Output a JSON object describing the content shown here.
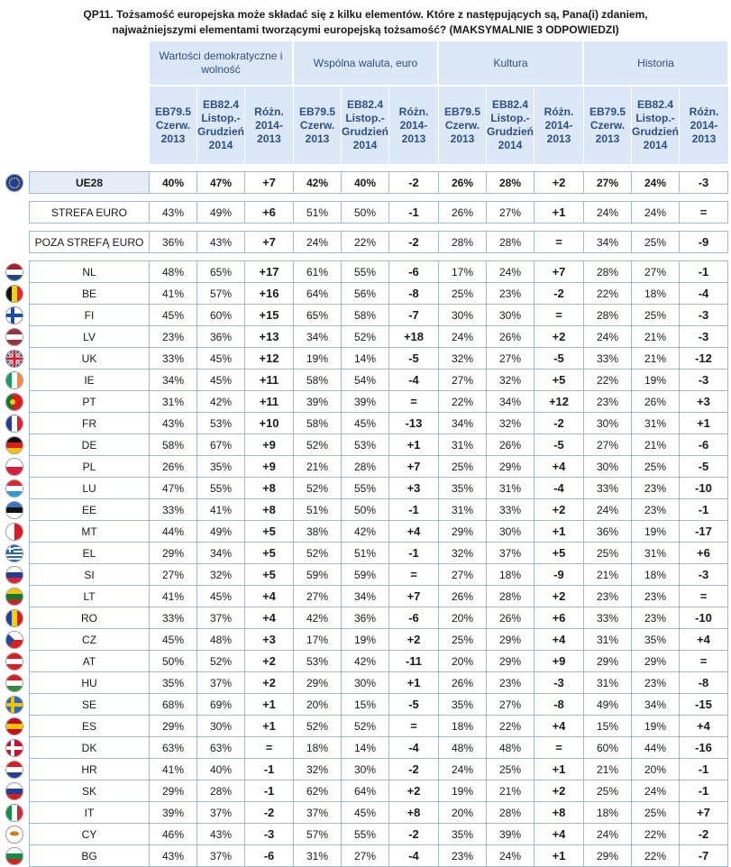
{
  "title_line1": "QP11. Tożsamość europejska może składać się z kilku elementów. Które z następujących są, Pana(i) zdaniem,",
  "title_line2": "najważniejszymi elementami tworzącymi europejską tożsamość? (MAKSYMALNIE 3 ODPOWIEDZI)",
  "groups": [
    "Wartości demokratyczne i wolność",
    "Wspólna waluta, euro",
    "Kultura",
    "Historia"
  ],
  "sub": [
    "EB79.5 Czerw. 2013",
    "EB82.4 Listop.- Grudzień 2014",
    "Różn. 2014- 2013"
  ],
  "top_rows": [
    {
      "name": "UE28",
      "bold": true,
      "v": [
        "40%",
        "47%",
        "+7",
        "42%",
        "40%",
        "-2",
        "26%",
        "28%",
        "+2",
        "27%",
        "24%",
        "-3"
      ]
    },
    {
      "name": "STREFA EURO",
      "v": [
        "43%",
        "49%",
        "+6",
        "51%",
        "50%",
        "-1",
        "26%",
        "27%",
        "+1",
        "24%",
        "24%",
        "="
      ]
    },
    {
      "name": "POZA STREFĄ EURO",
      "v": [
        "36%",
        "43%",
        "+7",
        "24%",
        "22%",
        "-2",
        "28%",
        "28%",
        "=",
        "34%",
        "25%",
        "-9"
      ]
    }
  ],
  "rows": [
    {
      "name": "NL",
      "v": [
        "48%",
        "65%",
        "+17",
        "61%",
        "55%",
        "-6",
        "17%",
        "24%",
        "+7",
        "28%",
        "27%",
        "-1"
      ]
    },
    {
      "name": "BE",
      "v": [
        "41%",
        "57%",
        "+16",
        "64%",
        "56%",
        "-8",
        "25%",
        "23%",
        "-2",
        "22%",
        "18%",
        "-4"
      ]
    },
    {
      "name": "FI",
      "v": [
        "45%",
        "60%",
        "+15",
        "65%",
        "58%",
        "-7",
        "30%",
        "30%",
        "=",
        "28%",
        "25%",
        "-3"
      ]
    },
    {
      "name": "LV",
      "v": [
        "23%",
        "36%",
        "+13",
        "34%",
        "52%",
        "+18",
        "24%",
        "26%",
        "+2",
        "24%",
        "21%",
        "-3"
      ]
    },
    {
      "name": "UK",
      "v": [
        "33%",
        "45%",
        "+12",
        "19%",
        "14%",
        "-5",
        "32%",
        "27%",
        "-5",
        "33%",
        "21%",
        "-12"
      ]
    },
    {
      "name": "IE",
      "v": [
        "34%",
        "45%",
        "+11",
        "58%",
        "54%",
        "-4",
        "27%",
        "32%",
        "+5",
        "22%",
        "19%",
        "-3"
      ]
    },
    {
      "name": "PT",
      "v": [
        "31%",
        "42%",
        "+11",
        "39%",
        "39%",
        "=",
        "22%",
        "34%",
        "+12",
        "23%",
        "26%",
        "+3"
      ]
    },
    {
      "name": "FR",
      "v": [
        "43%",
        "53%",
        "+10",
        "58%",
        "45%",
        "-13",
        "34%",
        "32%",
        "-2",
        "30%",
        "31%",
        "+1"
      ]
    },
    {
      "name": "DE",
      "v": [
        "58%",
        "67%",
        "+9",
        "52%",
        "53%",
        "+1",
        "31%",
        "26%",
        "-5",
        "27%",
        "21%",
        "-6"
      ]
    },
    {
      "name": "PL",
      "v": [
        "26%",
        "35%",
        "+9",
        "21%",
        "28%",
        "+7",
        "25%",
        "29%",
        "+4",
        "30%",
        "25%",
        "-5"
      ]
    },
    {
      "name": "LU",
      "v": [
        "47%",
        "55%",
        "+8",
        "52%",
        "55%",
        "+3",
        "35%",
        "31%",
        "-4",
        "33%",
        "23%",
        "-10"
      ]
    },
    {
      "name": "EE",
      "v": [
        "33%",
        "41%",
        "+8",
        "51%",
        "50%",
        "-1",
        "31%",
        "33%",
        "+2",
        "24%",
        "23%",
        "-1"
      ]
    },
    {
      "name": "MT",
      "v": [
        "44%",
        "49%",
        "+5",
        "38%",
        "42%",
        "+4",
        "29%",
        "30%",
        "+1",
        "36%",
        "19%",
        "-17"
      ]
    },
    {
      "name": "EL",
      "v": [
        "29%",
        "34%",
        "+5",
        "52%",
        "51%",
        "-1",
        "32%",
        "37%",
        "+5",
        "25%",
        "31%",
        "+6"
      ]
    },
    {
      "name": "SI",
      "v": [
        "27%",
        "32%",
        "+5",
        "59%",
        "59%",
        "=",
        "27%",
        "18%",
        "-9",
        "21%",
        "18%",
        "-3"
      ]
    },
    {
      "name": "LT",
      "v": [
        "41%",
        "45%",
        "+4",
        "27%",
        "34%",
        "+7",
        "26%",
        "28%",
        "+2",
        "23%",
        "23%",
        "="
      ]
    },
    {
      "name": "RO",
      "v": [
        "33%",
        "37%",
        "+4",
        "42%",
        "36%",
        "-6",
        "20%",
        "26%",
        "+6",
        "33%",
        "23%",
        "-10"
      ]
    },
    {
      "name": "CZ",
      "v": [
        "45%",
        "48%",
        "+3",
        "17%",
        "19%",
        "+2",
        "25%",
        "29%",
        "+4",
        "31%",
        "35%",
        "+4"
      ]
    },
    {
      "name": "AT",
      "v": [
        "50%",
        "52%",
        "+2",
        "53%",
        "42%",
        "-11",
        "20%",
        "29%",
        "+9",
        "29%",
        "29%",
        "="
      ]
    },
    {
      "name": "HU",
      "v": [
        "35%",
        "37%",
        "+2",
        "29%",
        "30%",
        "+1",
        "26%",
        "23%",
        "-3",
        "31%",
        "23%",
        "-8"
      ]
    },
    {
      "name": "SE",
      "v": [
        "68%",
        "69%",
        "+1",
        "20%",
        "15%",
        "-5",
        "35%",
        "27%",
        "-8",
        "49%",
        "34%",
        "-15"
      ]
    },
    {
      "name": "ES",
      "v": [
        "29%",
        "30%",
        "+1",
        "52%",
        "52%",
        "=",
        "18%",
        "22%",
        "+4",
        "15%",
        "19%",
        "+4"
      ]
    },
    {
      "name": "DK",
      "v": [
        "63%",
        "63%",
        "=",
        "18%",
        "14%",
        "-4",
        "48%",
        "48%",
        "=",
        "60%",
        "44%",
        "-16"
      ]
    },
    {
      "name": "HR",
      "v": [
        "41%",
        "40%",
        "-1",
        "32%",
        "30%",
        "-2",
        "24%",
        "25%",
        "+1",
        "21%",
        "20%",
        "-1"
      ]
    },
    {
      "name": "SK",
      "v": [
        "29%",
        "28%",
        "-1",
        "62%",
        "64%",
        "+2",
        "19%",
        "21%",
        "+2",
        "25%",
        "24%",
        "-1"
      ]
    },
    {
      "name": "IT",
      "v": [
        "39%",
        "37%",
        "-2",
        "37%",
        "45%",
        "+8",
        "20%",
        "28%",
        "+8",
        "18%",
        "25%",
        "+7"
      ]
    },
    {
      "name": "CY",
      "v": [
        "46%",
        "43%",
        "-3",
        "57%",
        "55%",
        "-2",
        "35%",
        "39%",
        "+4",
        "24%",
        "22%",
        "-2"
      ]
    },
    {
      "name": "BG",
      "v": [
        "43%",
        "37%",
        "-6",
        "31%",
        "27%",
        "-4",
        "23%",
        "24%",
        "+1",
        "29%",
        "22%",
        "-7"
      ]
    }
  ],
  "flag_colors": {
    "EU": [
      "#1e3fa0",
      "#f5d000"
    ],
    "NL": [
      "#ae1c28",
      "#ffffff",
      "#21468b"
    ],
    "BE": [
      "#111111",
      "#f5d000",
      "#e0252c"
    ],
    "FI": [
      "#ffffff",
      "#1d4fa0"
    ],
    "LV": [
      "#9e3039",
      "#ffffff",
      "#9e3039"
    ],
    "UK": [
      "#1f3b8a",
      "#ffffff",
      "#d0202a"
    ],
    "IE": [
      "#169b62",
      "#ffffff",
      "#ff883e"
    ],
    "PT": [
      "#0a7a2e",
      "#d81e1e"
    ],
    "FR": [
      "#1f3e9c",
      "#ffffff",
      "#e0202c"
    ],
    "DE": [
      "#111111",
      "#d81e1e",
      "#f5c400"
    ],
    "PL": [
      "#ffffff",
      "#d81e3a"
    ],
    "LU": [
      "#e0252c",
      "#ffffff",
      "#2a9ad6"
    ],
    "EE": [
      "#3a74c4",
      "#111111",
      "#ffffff"
    ],
    "MT": [
      "#ffffff",
      "#d0202a"
    ],
    "EL": [
      "#2a64b6",
      "#ffffff"
    ],
    "SI": [
      "#ffffff",
      "#1f3e9c",
      "#e0202c"
    ],
    "LT": [
      "#f5c400",
      "#0a7a2e",
      "#c1272d"
    ],
    "RO": [
      "#1f3e9c",
      "#f5d000",
      "#d81e1e"
    ],
    "CZ": [
      "#ffffff",
      "#d81e1e",
      "#1f4a9e"
    ],
    "AT": [
      "#d81e1e",
      "#ffffff",
      "#d81e1e"
    ],
    "HU": [
      "#d81e1e",
      "#ffffff",
      "#2e8b3a"
    ],
    "SE": [
      "#2a6bb8",
      "#f5c400"
    ],
    "ES": [
      "#c60b1e",
      "#f5c400",
      "#c60b1e"
    ],
    "DK": [
      "#c8102e",
      "#ffffff"
    ],
    "HR": [
      "#d81e1e",
      "#ffffff",
      "#1f3e9c"
    ],
    "SK": [
      "#ffffff",
      "#1f3e9c",
      "#d81e1e"
    ],
    "IT": [
      "#0a9246",
      "#ffffff",
      "#ce2b37"
    ],
    "CY": [
      "#ffffff",
      "#d57800"
    ],
    "BG": [
      "#ffffff",
      "#0a9246",
      "#d81e1e"
    ]
  }
}
